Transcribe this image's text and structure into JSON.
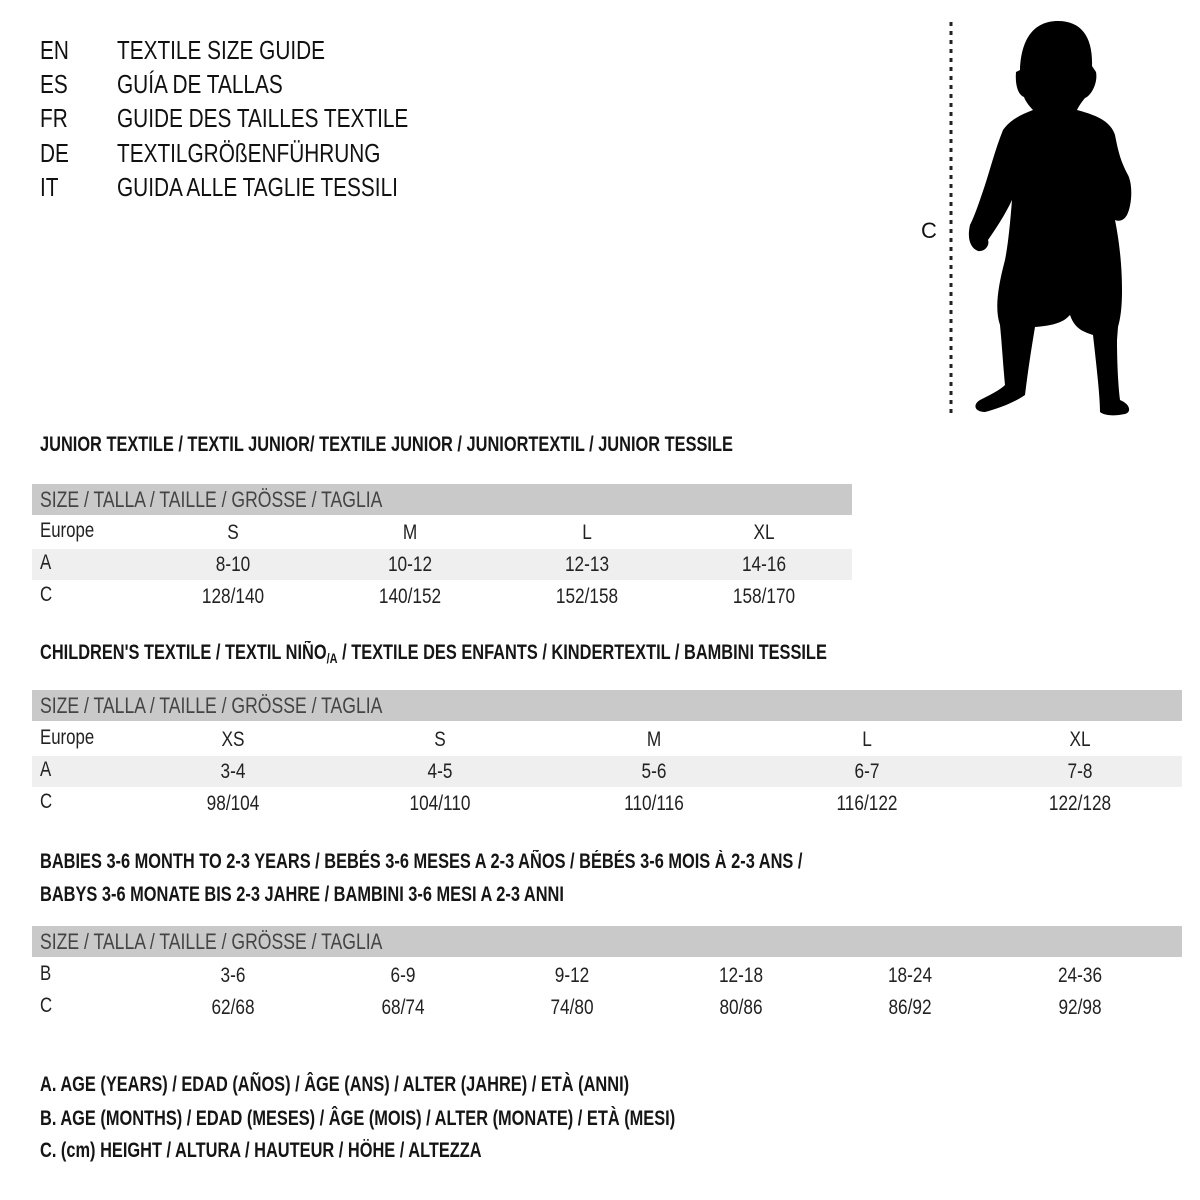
{
  "languages": [
    {
      "code": "EN",
      "title": "TEXTILE SIZE GUIDE"
    },
    {
      "code": "ES",
      "title": "GUÍA DE TALLAS"
    },
    {
      "code": "FR",
      "title": "GUIDE DES TAILLES TEXTILE"
    },
    {
      "code": "DE",
      "title": "TEXTILGRÖßENFÜHRUNG"
    },
    {
      "code": "IT",
      "title": "GUIDA ALLE TAGLIE TESSILI"
    }
  ],
  "figure": {
    "measure_label": "C",
    "icon": "baby-silhouette"
  },
  "colors": {
    "header_band": "#c9c9c9",
    "stripe": "#efefef"
  },
  "size_header": "SIZE / TALLA / TAILLE / GRÖSSE / TAGLIA",
  "junior": {
    "heading": "JUNIOR TEXTILE / TEXTIL JUNIOR/ TEXTILE JUNIOR / JUNIORTEXTIL / JUNIOR TESSILE",
    "rows": [
      {
        "label": "Europe",
        "values": [
          "S",
          "M",
          "L",
          "XL"
        ]
      },
      {
        "label": "A",
        "values": [
          "8-10",
          "10-12",
          "12-13",
          "14-16"
        ]
      },
      {
        "label": "C",
        "values": [
          "128/140",
          "140/152",
          "152/158",
          "158/170"
        ]
      }
    ]
  },
  "children": {
    "heading_pre": "CHILDREN'S TEXTILE / TEXTIL NIÑO",
    "heading_sub": "/A",
    "heading_post": " / TEXTILE DES ENFANTS / KINDERTEXTIL / BAMBINI TESSILE",
    "rows": [
      {
        "label": "Europe",
        "values": [
          "XS",
          "S",
          "M",
          "L",
          "XL"
        ]
      },
      {
        "label": "A",
        "values": [
          "3-4",
          "4-5",
          "5-6",
          "6-7",
          "7-8"
        ]
      },
      {
        "label": "C",
        "values": [
          "98/104",
          "104/110",
          "110/116",
          "116/122",
          "122/128"
        ]
      }
    ]
  },
  "babies": {
    "heading_line1": "BABIES 3-6 MONTH TO 2-3 YEARS / BEBÉS 3-6 MESES A 2-3 AÑOS / BÉBÉS 3-6 MOIS À 2-3 ANS /",
    "heading_line2": "BABYS 3-6 MONATE BIS 2-3 JAHRE / BAMBINI 3-6 MESI A 2-3 ANNI",
    "rows": [
      {
        "label": "B",
        "values": [
          "3-6",
          "6-9",
          "9-12",
          "12-18",
          "18-24",
          "24-36"
        ]
      },
      {
        "label": "C",
        "values": [
          "62/68",
          "68/74",
          "74/80",
          "80/86",
          "86/92",
          "92/98"
        ]
      }
    ]
  },
  "notes": [
    "A. AGE (YEARS) / EDAD (AÑOS) / ÂGE (ANS) / ALTER (JAHRE) / ETÀ (ANNI)",
    "B. AGE (MONTHS) / EDAD (MESES) / ÂGE (MOIS) / ALTER (MONATE) / ETÀ (MESI)",
    "C. (cm) HEIGHT / ALTURA / HAUTEUR / HÖHE / ALTEZZA"
  ]
}
